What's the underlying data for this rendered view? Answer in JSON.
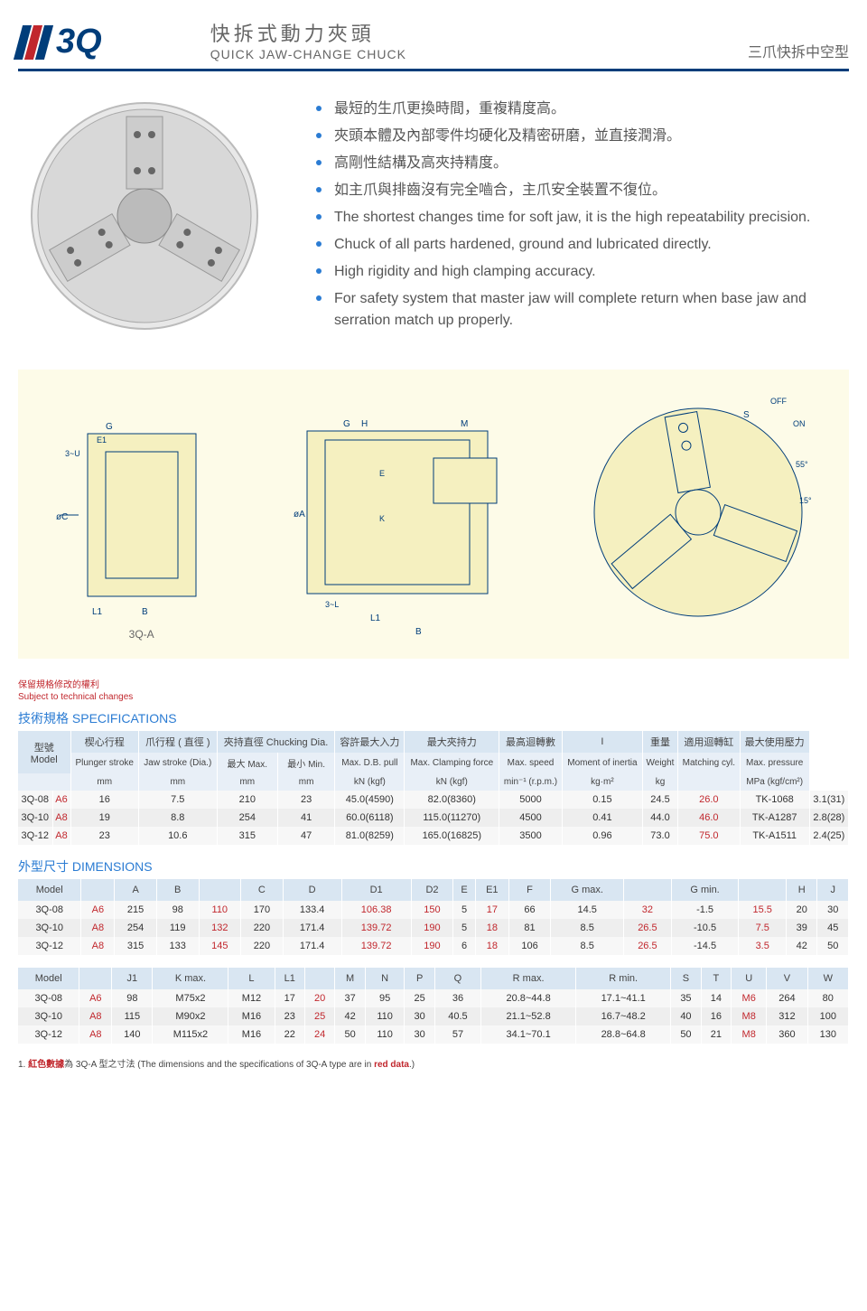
{
  "header": {
    "logo": "3Q",
    "title_zh": "快拆式動力夾頭",
    "title_en": "QUICK JAW-CHANGE CHUCK",
    "subtitle": "三爪快拆中空型"
  },
  "bullets": [
    "最短的生爪更換時間，重複精度高。",
    "夾頭本體及內部零件均硬化及精密研磨，並直接潤滑。",
    "高剛性結構及高夾持精度。",
    "如主爪與排齒沒有完全嚙合，主爪安全裝置不復位。",
    "The shortest changes time for soft jaw, it is the high repeatability precision.",
    "Chuck of all parts hardened, ground and lubricated directly.",
    "High rigidity and high clamping accuracy.",
    "For safety system that master jaw will complete return when base jaw and serration match up properly."
  ],
  "drawing_labels": {
    "a": "3Q-A",
    "b": "B"
  },
  "notes": {
    "reserve_zh": "保留規格修改的權利",
    "reserve_en": "Subject to technical changes"
  },
  "spec": {
    "title": "技術規格 SPECIFICATIONS",
    "header_zh": [
      "型號",
      "楔心行程",
      "爪行程 ( 直徑 )",
      "夾持直徑 Chucking Dia.",
      "容許最大入力",
      "最大夾持力",
      "最高迴轉數",
      "I",
      "重量",
      "適用迴轉缸",
      "最大使用壓力"
    ],
    "header_sub": [
      "Model",
      "Plunger stroke",
      "Jaw stroke (Dia.)",
      "最大 Max.",
      "最小 Min.",
      "Max. D.B. pull",
      "Max. Clamping force",
      "Max. speed",
      "Moment of inertia",
      "Weight",
      "Matching cyl.",
      "Max. pressure"
    ],
    "header_unit": [
      "",
      "mm",
      "mm",
      "mm",
      "mm",
      "kN (kgf)",
      "kN (kgf)",
      "min⁻¹ (r.p.m.)",
      "kg·m²",
      "kg",
      "",
      "MPa (kgf/cm²)"
    ],
    "rows": [
      {
        "m": "3Q-08",
        "v": "A6",
        "d": [
          "16",
          "7.5",
          "210",
          "23",
          "45.0(4590)",
          "82.0(8360)",
          "5000",
          "0.15",
          "24.5",
          "26.0",
          "TK-1068",
          "3.1(31)"
        ]
      },
      {
        "m": "3Q-10",
        "v": "A8",
        "d": [
          "19",
          "8.8",
          "254",
          "41",
          "60.0(6118)",
          "115.0(11270)",
          "4500",
          "0.41",
          "44.0",
          "46.0",
          "TK-A1287",
          "2.8(28)"
        ]
      },
      {
        "m": "3Q-12",
        "v": "A8",
        "d": [
          "23",
          "10.6",
          "315",
          "47",
          "81.0(8259)",
          "165.0(16825)",
          "3500",
          "0.96",
          "73.0",
          "75.0",
          "TK-A1511",
          "2.4(25)"
        ]
      }
    ],
    "red_cells_idx": [
      9
    ]
  },
  "dim": {
    "title": "外型尺寸 DIMENSIONS",
    "h1": [
      "Model",
      "",
      "A",
      "B",
      "",
      "C",
      "D",
      "D1",
      "D2",
      "E",
      "E1",
      "F",
      "G max.",
      "",
      "G min.",
      "",
      "H",
      "J"
    ],
    "rows1": [
      {
        "m": "3Q-08",
        "v": "A6",
        "d": [
          "215",
          "98",
          "110",
          "170",
          "133.4",
          "106.38",
          "150",
          "5",
          "17",
          "66",
          "14.5",
          "32",
          "-1.5",
          "15.5",
          "20",
          "30"
        ]
      },
      {
        "m": "3Q-10",
        "v": "A8",
        "d": [
          "254",
          "119",
          "132",
          "220",
          "171.4",
          "139.72",
          "190",
          "5",
          "18",
          "81",
          "8.5",
          "26.5",
          "-10.5",
          "7.5",
          "39",
          "45"
        ]
      },
      {
        "m": "3Q-12",
        "v": "A8",
        "d": [
          "315",
          "133",
          "145",
          "220",
          "171.4",
          "139.72",
          "190",
          "6",
          "18",
          "106",
          "8.5",
          "26.5",
          "-14.5",
          "3.5",
          "42",
          "50"
        ]
      }
    ],
    "red1_idx": [
      2,
      5,
      6,
      8,
      11,
      13
    ],
    "h2": [
      "Model",
      "",
      "J1",
      "K max.",
      "L",
      "L1",
      "",
      "M",
      "N",
      "P",
      "Q",
      "R max.",
      "R min.",
      "S",
      "T",
      "U",
      "V",
      "W"
    ],
    "rows2": [
      {
        "m": "3Q-08",
        "v": "A6",
        "d": [
          "98",
          "M75x2",
          "M12",
          "17",
          "20",
          "37",
          "95",
          "25",
          "36",
          "20.8~44.8",
          "17.1~41.1",
          "35",
          "14",
          "M6",
          "264",
          "80"
        ]
      },
      {
        "m": "3Q-10",
        "v": "A8",
        "d": [
          "115",
          "M90x2",
          "M16",
          "23",
          "25",
          "42",
          "110",
          "30",
          "40.5",
          "21.1~52.8",
          "16.7~48.2",
          "40",
          "16",
          "M8",
          "312",
          "100"
        ]
      },
      {
        "m": "3Q-12",
        "v": "A8",
        "d": [
          "140",
          "M115x2",
          "M16",
          "22",
          "24",
          "50",
          "110",
          "30",
          "57",
          "34.1~70.1",
          "28.8~64.8",
          "50",
          "21",
          "M8",
          "360",
          "130"
        ]
      }
    ],
    "red2_idx": [
      4,
      13
    ]
  },
  "footnote": {
    "num": "1.",
    "zh1": "紅色數據",
    "zh2": "為 3Q-A 型之寸法 (The dimensions and the specifications of 3Q-A type are in ",
    "red": "red data",
    "end": ".)"
  }
}
